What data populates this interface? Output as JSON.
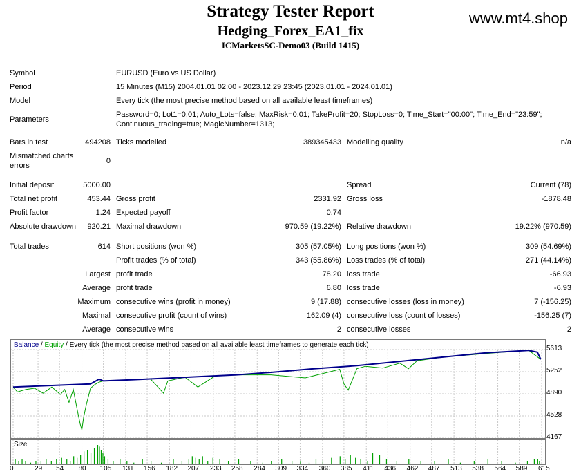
{
  "header": {
    "title": "Strategy Tester Report",
    "subtitle": "Hedging_Forex_EA1_fix",
    "server": "ICMarketsSC-Demo03 (Build 1415)",
    "watermark": "www.mt4.shop"
  },
  "info": {
    "symbol_label": "Symbol",
    "symbol": "EURUSD (Euro vs US Dollar)",
    "period_label": "Period",
    "period": "15 Minutes (M15) 2004.01.01 02:00 - 2023.12.29 23:45 (2023.01.01 - 2024.01.01)",
    "model_label": "Model",
    "model": "Every tick (the most precise method based on all available least timeframes)",
    "parameters_label": "Parameters",
    "parameters_line1": "Password=0; Lot1=0.01; Auto_Lots=false; MaxRisk=0.01; TakeProfit=20; StopLoss=0; Time_Start=\"00:00\"; Time_End=\"23:59\";",
    "parameters_line2": "Continuous_trading=true; MagicNumber=1313;"
  },
  "stats": {
    "bars_label": "Bars in test",
    "bars": "494208",
    "ticks_label": "Ticks modelled",
    "ticks": "389345433",
    "quality_label": "Modelling quality",
    "quality": "n/a",
    "mismatch_label_1": "Mismatched charts",
    "mismatch_label_2": "errors",
    "mismatch": "0",
    "deposit_label": "Initial deposit",
    "deposit": "5000.00",
    "spread_label": "Spread",
    "spread": "Current (78)",
    "net_label": "Total net profit",
    "net": "453.44",
    "gross_profit_label": "Gross profit",
    "gross_profit": "2331.92",
    "gross_loss_label": "Gross loss",
    "gross_loss": "-1878.48",
    "pf_label": "Profit factor",
    "pf": "1.24",
    "payoff_label": "Expected payoff",
    "payoff": "0.74",
    "abs_dd_label": "Absolute drawdown",
    "abs_dd": "920.21",
    "max_dd_label": "Maximal drawdown",
    "max_dd": "970.59 (19.22%)",
    "rel_dd_label": "Relative drawdown",
    "rel_dd": "19.22% (970.59)",
    "trades_label": "Total trades",
    "trades": "614",
    "short_label": "Short positions (won %)",
    "short": "305 (57.05%)",
    "long_label": "Long positions (won %)",
    "long": "309 (54.69%)",
    "profit_trades_label": "Profit trades (% of total)",
    "profit_trades": "343 (55.86%)",
    "loss_trades_label": "Loss trades (% of total)",
    "loss_trades": "271 (44.14%)",
    "largest_label": "Largest",
    "largest_profit_label": "profit trade",
    "largest_profit": "78.20",
    "largest_loss_label": "loss trade",
    "largest_loss": "-66.93",
    "average_label": "Average",
    "average_profit_label": "profit trade",
    "average_profit": "6.80",
    "average_loss_label": "loss trade",
    "average_loss": "-6.93",
    "maximum_label": "Maximum",
    "max_wins_label": "consecutive wins (profit in money)",
    "max_wins": "9 (17.88)",
    "max_losses_label": "consecutive losses (loss in money)",
    "max_losses": "7 (-156.25)",
    "maximal_label": "Maximal",
    "maximal_profit_label": "consecutive profit (count of wins)",
    "maximal_profit": "162.09 (4)",
    "maximal_loss_label": "consecutive loss (count of losses)",
    "maximal_loss": "-156.25 (7)",
    "avg_cons_label": "Average",
    "avg_wins_label": "consecutive wins",
    "avg_wins": "2",
    "avg_losses_label": "consecutive losses",
    "avg_losses": "2"
  },
  "chart_legend": {
    "balance": "Balance",
    "sep": " / ",
    "equity": "Equity",
    "rest": " / Every tick (the most precise method based on all available least timeframes to generate each tick)",
    "size_label": "Size"
  },
  "colors": {
    "balance": "#00008b",
    "equity": "#00a000",
    "size": "#00a000",
    "grid": "#c8c8c8"
  },
  "chart_data": {
    "type": "line",
    "ylim": [
      4167,
      5613
    ],
    "yticks": [
      "5613",
      "5252",
      "4890",
      "4528",
      "4167"
    ],
    "xticks": [
      "0",
      "29",
      "54",
      "80",
      "105",
      "131",
      "156",
      "182",
      "207",
      "233",
      "258",
      "284",
      "309",
      "334",
      "360",
      "385",
      "411",
      "436",
      "462",
      "487",
      "513",
      "538",
      "564",
      "589",
      "615"
    ],
    "series": [
      {
        "name": "Balance",
        "x": [
          0,
          90,
          100,
          105,
          140,
          200,
          260,
          300,
          350,
          400,
          450,
          500,
          550,
          600,
          610,
          614
        ],
        "values": [
          5000,
          5050,
          5130,
          5100,
          5120,
          5160,
          5200,
          5240,
          5300,
          5350,
          5420,
          5490,
          5560,
          5600,
          5570,
          5453
        ]
      },
      {
        "name": "Equity",
        "x": [
          0,
          5,
          15,
          25,
          35,
          45,
          55,
          60,
          65,
          70,
          75,
          78,
          80,
          82,
          85,
          90,
          95,
          100,
          105,
          120,
          160,
          175,
          180,
          200,
          215,
          235,
          260,
          300,
          340,
          380,
          385,
          390,
          400,
          410,
          430,
          450,
          460,
          470,
          500,
          560,
          600,
          614
        ],
        "values": [
          5000,
          4920,
          4960,
          4980,
          4900,
          5000,
          4880,
          4960,
          4750,
          4960,
          4600,
          4400,
          4300,
          4500,
          4700,
          4980,
          5040,
          5080,
          5100,
          5110,
          5130,
          4900,
          5100,
          5160,
          5000,
          5180,
          5200,
          5200,
          5150,
          5290,
          5050,
          4950,
          5300,
          5340,
          5310,
          5390,
          5300,
          5430,
          5490,
          5560,
          5600,
          5453
        ]
      }
    ],
    "size_x": [
      2,
      6,
      10,
      14,
      20,
      26,
      32,
      38,
      44,
      50,
      56,
      62,
      66,
      70,
      74,
      78,
      82,
      86,
      90,
      94,
      98,
      100,
      102,
      104,
      106,
      110,
      116,
      124,
      132,
      140,
      150,
      160,
      172,
      186,
      196,
      204,
      208,
      212,
      216,
      220,
      226,
      232,
      240,
      250,
      262,
      276,
      290,
      300,
      312,
      324,
      334,
      344,
      352,
      360,
      370,
      380,
      386,
      392,
      398,
      404,
      412,
      418,
      426,
      434,
      446,
      460,
      474,
      490,
      506,
      520,
      536,
      552,
      568,
      584,
      598,
      606,
      610,
      612
    ],
    "size_values": [
      3,
      2,
      3,
      2,
      1,
      2,
      2,
      3,
      2,
      3,
      4,
      3,
      2,
      5,
      4,
      6,
      8,
      9,
      7,
      10,
      12,
      11,
      9,
      7,
      5,
      3,
      2,
      3,
      2,
      1,
      3,
      2,
      1,
      3,
      2,
      3,
      5,
      4,
      3,
      5,
      2,
      4,
      3,
      2,
      3,
      2,
      1,
      2,
      3,
      2,
      2,
      1,
      3,
      2,
      4,
      5,
      3,
      6,
      4,
      3,
      2,
      7,
      6,
      3,
      2,
      3,
      2,
      2,
      3,
      1,
      2,
      3,
      2,
      1,
      2,
      3,
      3,
      2
    ]
  }
}
